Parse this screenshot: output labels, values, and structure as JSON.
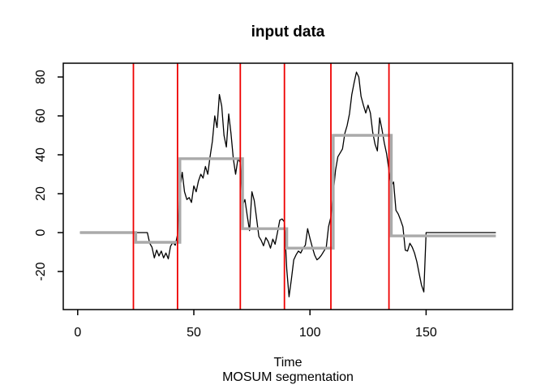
{
  "figure": {
    "title": "input data",
    "x_axis_label": "Time",
    "x_axis_sublabel": "MOSUM segmentation"
  },
  "chart_data": {
    "type": "line",
    "title": "input data",
    "xlabel": "Time",
    "xlabel_sub": "MOSUM segmentation",
    "ylabel": "",
    "grid": false,
    "legend_position": "none",
    "x_ticks": [
      0,
      50,
      100,
      150
    ],
    "y_ticks": [
      -20,
      0,
      20,
      40,
      60,
      80
    ],
    "xlim": [
      -6.2,
      187.2
    ],
    "ylim": [
      -39.6,
      87.1
    ],
    "axis_color": "#000000",
    "series": [
      {
        "name": "input-data",
        "type": "line",
        "color": "#000000",
        "line_width": 1.3,
        "x_start": 1,
        "x_step": 1,
        "values": [
          0,
          0,
          0,
          0,
          0,
          0,
          0,
          0,
          0,
          0,
          0,
          0,
          0,
          0,
          0,
          0,
          0,
          0,
          0,
          0,
          0,
          0,
          0,
          0,
          0,
          0,
          0,
          0,
          0,
          0,
          -5.5,
          -7.5,
          -13,
          -9,
          -12,
          -9.5,
          -13,
          -10.5,
          -13.5,
          -7,
          -5,
          -6.5,
          -1,
          22,
          31,
          21,
          17,
          18,
          15.5,
          24,
          21,
          26.5,
          30,
          28,
          34,
          30,
          39,
          47,
          60,
          54,
          71,
          65,
          50,
          44,
          61,
          51,
          38,
          30,
          38,
          36,
          14,
          17,
          8.5,
          1,
          21,
          16.5,
          7.5,
          -2,
          -4,
          -6.8,
          -2.6,
          -4.6,
          -8,
          -3.4,
          -6,
          0,
          6.4,
          7,
          5.5,
          -19,
          -33,
          -24,
          -14,
          -11.5,
          -9.5,
          -10.5,
          -8,
          -6.5,
          2,
          -3,
          -7.5,
          -11.5,
          -14,
          -13,
          -11.5,
          -9.5,
          -7.5,
          3,
          8,
          20,
          32,
          39,
          41,
          43,
          51,
          55,
          61,
          71,
          77,
          82.5,
          80,
          70,
          65.5,
          61.5,
          65.5,
          61.5,
          51.5,
          45.5,
          42,
          59,
          53,
          46,
          40.5,
          32,
          24,
          26,
          11.5,
          9.5,
          6.5,
          3,
          -9,
          -9.5,
          -5.5,
          -7.5,
          -10.5,
          -15,
          -21,
          -27,
          -30.5,
          0,
          0,
          0,
          0,
          0,
          0,
          0,
          0,
          0,
          0,
          0,
          0,
          0,
          0,
          0,
          0,
          0,
          0,
          0,
          0,
          0,
          0,
          0,
          0,
          0,
          0,
          0,
          0,
          0,
          0,
          0
        ]
      }
    ],
    "segment_means": {
      "name": "mosum-segment-means",
      "color": "#aaaaaa",
      "line_width": 3.4,
      "segments": [
        {
          "start": 1,
          "end": 25,
          "mean": 0
        },
        {
          "start": 25,
          "end": 44,
          "mean": -5
        },
        {
          "start": 44,
          "end": 71,
          "mean": 38
        },
        {
          "start": 71,
          "end": 90,
          "mean": 2
        },
        {
          "start": 90,
          "end": 110,
          "mean": -8
        },
        {
          "start": 110,
          "end": 135,
          "mean": 50
        },
        {
          "start": 135,
          "end": 180,
          "mean": -1.7
        }
      ]
    },
    "changepoints": {
      "color": "#ee0000",
      "line_width": 1.8,
      "x": [
        24,
        43,
        70,
        89,
        109,
        134
      ]
    }
  }
}
